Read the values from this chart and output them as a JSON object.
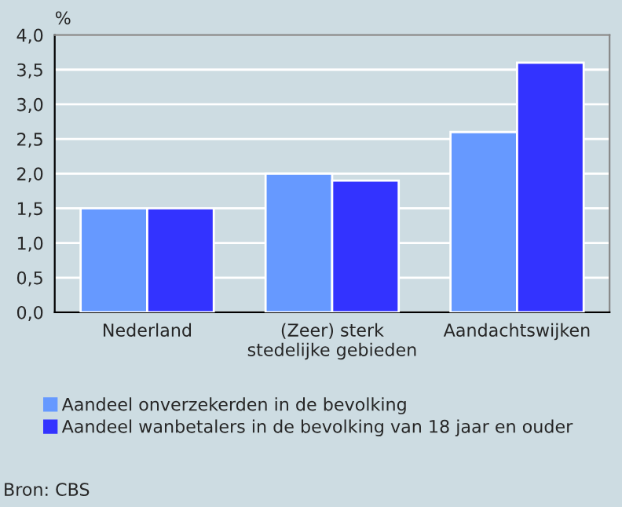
{
  "chart_data": {
    "type": "bar",
    "ylabel": "%",
    "categories": [
      "Nederland",
      "(Zeer) sterk\nstedelijke gebieden",
      "Aandachtswijken"
    ],
    "series": [
      {
        "name": "Aandeel onverzekerden in de bevolking",
        "color": "#6699ff",
        "values": [
          1.5,
          2.0,
          2.6
        ]
      },
      {
        "name": "Aandeel wanbetalers in de bevolking van 18 jaar en ouder",
        "color": "#3333ff",
        "values": [
          1.5,
          1.9,
          3.6
        ]
      }
    ],
    "ylim": [
      0,
      4
    ],
    "yticks": [
      {
        "value": 0,
        "label": "0,0"
      },
      {
        "value": 0.5,
        "label": "0,5"
      },
      {
        "value": 1,
        "label": "1,0"
      },
      {
        "value": 1.5,
        "label": "1,5"
      },
      {
        "value": 2,
        "label": "2,0"
      },
      {
        "value": 2.5,
        "label": "2,5"
      },
      {
        "value": 3,
        "label": "3,0"
      },
      {
        "value": 3.5,
        "label": "3,5"
      },
      {
        "value": 4,
        "label": "4,0"
      }
    ],
    "grid": "y",
    "legend": "bottom",
    "annotations": [
      "Bron: CBS"
    ]
  }
}
